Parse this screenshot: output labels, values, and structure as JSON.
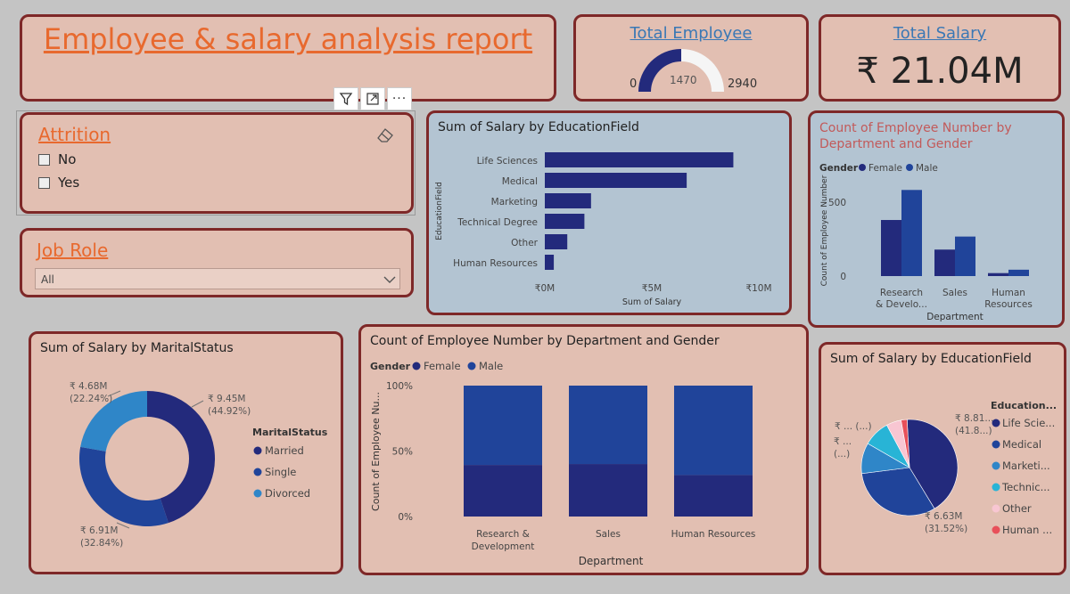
{
  "report_title": "Employee & salary analysis report",
  "total_employee": {
    "title": "Total Employee",
    "value": 1470,
    "min": 0,
    "max": 2940,
    "min_label": "0",
    "value_label": "1470",
    "max_label": "2940"
  },
  "total_salary": {
    "title": "Total Salary",
    "value": "₹ 21.04M"
  },
  "visual_toolbar": {
    "filter_icon": "filter-icon",
    "focus_icon": "focus-mode-icon",
    "more_icon": "more-options-icon",
    "more_label": "···"
  },
  "attrition_slicer": {
    "title": "Attrition",
    "options": [
      "No",
      "Yes"
    ],
    "eraser_icon": "eraser-icon"
  },
  "job_role_slicer": {
    "title": "Job Role",
    "selected": "All",
    "chevron_icon": "chevron-down-icon"
  },
  "colors": {
    "female": "#232a7c",
    "male": "#20449a",
    "accent": "#e8692e",
    "link": "#3a78b5",
    "border": "#7e2828"
  },
  "chart_data": [
    {
      "id": "edu_bar",
      "type": "bar",
      "orientation": "horizontal",
      "title": "Sum of Salary by EducationField",
      "xlabel": "Sum of Salary",
      "ylabel": "EducationField",
      "categories": [
        "Life Sciences",
        "Medical",
        "Marketing",
        "Technical Degree",
        "Other",
        "Human Resources"
      ],
      "values": [
        8.81,
        6.63,
        2.16,
        1.85,
        1.05,
        0.42
      ],
      "value_unit": "₹M",
      "xlim": [
        0,
        10
      ],
      "xticks": [
        0,
        5,
        10
      ],
      "xtick_labels": [
        "₹0M",
        "₹5M",
        "₹10M"
      ]
    },
    {
      "id": "dept_gender_bar",
      "type": "bar",
      "title": "Count of Employee Number by Department and Gender",
      "legend_title": "Gender",
      "xlabel": "Department",
      "ylabel": "Count of Employee Number",
      "categories": [
        "Research & Development",
        "Sales",
        "Human Resources"
      ],
      "category_labels": [
        [
          "Research",
          "& Develo..."
        ],
        [
          "Sales"
        ],
        [
          "Human",
          "Resources"
        ]
      ],
      "series": [
        {
          "name": "Female",
          "values": [
            379,
            179,
            20
          ]
        },
        {
          "name": "Male",
          "values": [
            582,
            267,
            43
          ]
        }
      ],
      "ylim": [
        0,
        650
      ],
      "yticks": [
        0,
        500
      ],
      "ytick_labels": [
        "0",
        "500"
      ]
    },
    {
      "id": "marital_donut",
      "type": "pie",
      "style": "donut",
      "title": "Sum of Salary by MaritalStatus",
      "legend_title": "MaritalStatus",
      "labels": [
        "Married",
        "Single",
        "Divorced"
      ],
      "values": [
        9.45,
        6.91,
        4.68
      ],
      "percents": [
        44.92,
        32.84,
        22.24
      ],
      "value_labels": [
        "₹ 9.45M",
        "₹ 6.91M",
        "₹ 4.68M"
      ],
      "percent_labels": [
        "(44.92%)",
        "(32.84%)",
        "(22.24%)"
      ],
      "colors": [
        "#232a7c",
        "#20449a",
        "#2f86c8"
      ]
    },
    {
      "id": "dept_gender_stacked",
      "type": "bar",
      "stacked": "100%",
      "title": "Count of Employee Number by Department and Gender",
      "legend_title": "Gender",
      "xlabel": "Department",
      "ylabel": "Count of Employee Nu...",
      "categories": [
        "Research & Development",
        "Sales",
        "Human Resources"
      ],
      "category_labels": [
        [
          "Research &",
          "Development"
        ],
        [
          "Sales"
        ],
        [
          "Human Resources"
        ]
      ],
      "series": [
        {
          "name": "Female",
          "values": [
            39.4,
            40.1,
            31.7
          ]
        },
        {
          "name": "Male",
          "values": [
            60.6,
            59.9,
            68.3
          ]
        }
      ],
      "ylim": [
        0,
        100
      ],
      "yticks": [
        0,
        50,
        100
      ],
      "ytick_labels": [
        "0%",
        "50%",
        "100%"
      ]
    },
    {
      "id": "edu_pie",
      "type": "pie",
      "title": "Sum of Salary by EducationField",
      "legend_title": "Education...",
      "labels": [
        "Life Scie...",
        "Medical",
        "Marketi...",
        "Technic...",
        "Other",
        "Human ..."
      ],
      "values": [
        8.81,
        6.63,
        2.16,
        1.85,
        1.05,
        0.42
      ],
      "colors": [
        "#232a7c",
        "#20449a",
        "#2f86c8",
        "#28b4d6",
        "#f8c6d2",
        "#e8505a"
      ],
      "callouts": [
        {
          "lines": [
            "₹ 8.81...",
            "(41.8...)"
          ]
        },
        {
          "lines": [
            "₹ 6.63M",
            "(31.52%)"
          ]
        },
        {
          "lines": [
            "₹ ...",
            "(...)"
          ]
        },
        {
          "lines": [
            "₹ ... (...)"
          ]
        }
      ]
    }
  ]
}
